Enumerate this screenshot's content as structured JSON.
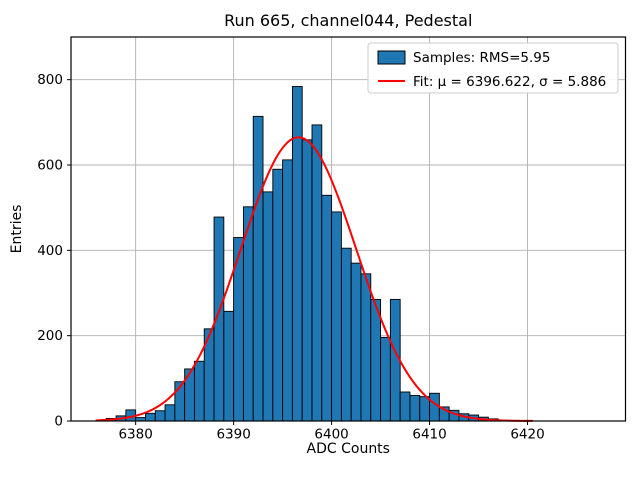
{
  "title": "Run 665, channel044, Pedestal",
  "chart_data": {
    "type": "bar",
    "subtype": "histogram",
    "title": "Run 665, channel044, Pedestal",
    "xlabel": "ADC Counts",
    "ylabel": "Entries",
    "xlim": [
      6373.4,
      6430.0
    ],
    "ylim": [
      0,
      900
    ],
    "xticks": [
      6380,
      6390,
      6400,
      6410,
      6420
    ],
    "yticks": [
      0,
      200,
      400,
      600,
      800
    ],
    "grid": true,
    "grid_color": "#b0b0b0",
    "bar_color": "#1f77b4",
    "bar_edge_color": "#000000",
    "bin_start": 6377,
    "bin_width": 1,
    "bin_centers": [
      6377.5,
      6378.5,
      6379.5,
      6380.5,
      6381.5,
      6382.5,
      6383.5,
      6384.5,
      6385.5,
      6386.5,
      6387.5,
      6388.5,
      6389.5,
      6390.5,
      6391.5,
      6392.5,
      6393.5,
      6394.5,
      6395.5,
      6396.5,
      6397.5,
      6398.5,
      6399.5,
      6400.5,
      6401.5,
      6402.5,
      6403.5,
      6404.5,
      6405.5,
      6406.5,
      6407.5,
      6408.5,
      6409.5,
      6410.5,
      6411.5,
      6412.5,
      6413.5,
      6414.5,
      6415.5,
      6416.5
    ],
    "counts": [
      6,
      12,
      26,
      8,
      18,
      24,
      38,
      92,
      122,
      140,
      216,
      478,
      257,
      430,
      502,
      714,
      537,
      590,
      612,
      784,
      659,
      694,
      529,
      490,
      405,
      370,
      345,
      285,
      196,
      285,
      68,
      60,
      57,
      65,
      33,
      25,
      17,
      14,
      9,
      5
    ],
    "rms": 5.95,
    "fit": {
      "type": "gaussian",
      "mu": 6396.622,
      "sigma": 5.886,
      "amplitude": 665,
      "x_range": [
        6376.0,
        6420.5
      ],
      "color": "#ff0000"
    },
    "legend": {
      "position": "upper right",
      "entries": [
        {
          "label": "Samples: RMS=5.95",
          "swatch": "bar",
          "color": "#1f77b4"
        },
        {
          "label": "Fit: μ = 6396.622, σ = 5.886",
          "swatch": "line",
          "color": "#ff0000"
        }
      ]
    }
  }
}
